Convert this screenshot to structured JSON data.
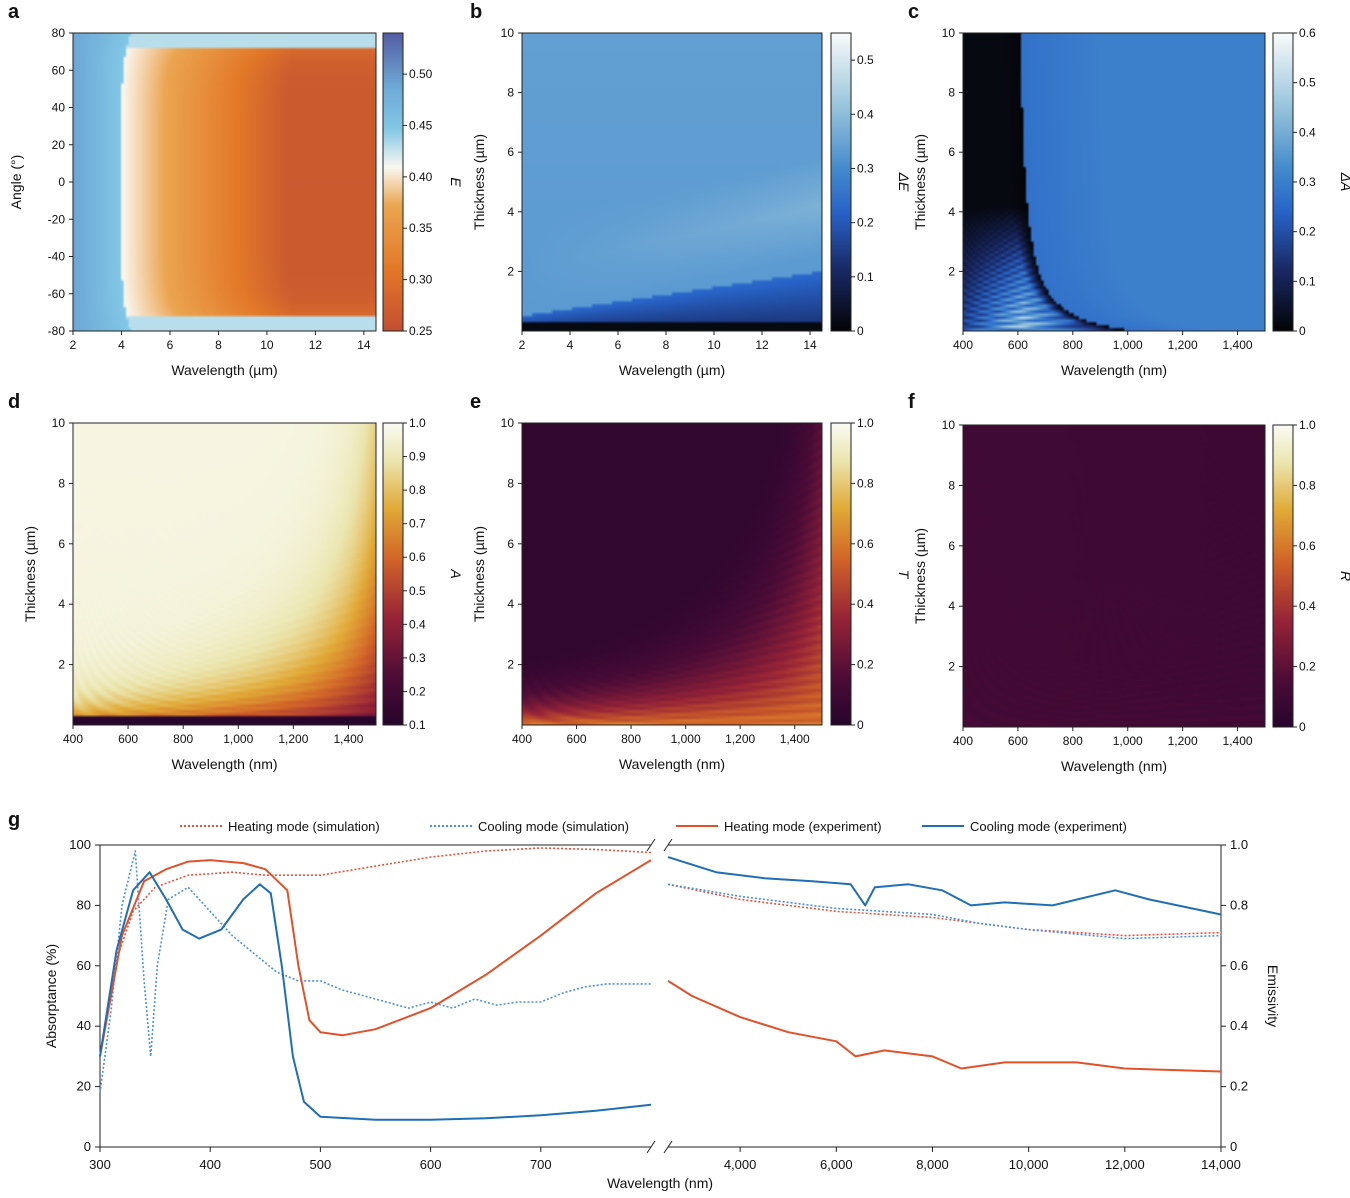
{
  "panel_letters": [
    "a",
    "b",
    "c",
    "d",
    "e",
    "f",
    "g"
  ],
  "chart_data": [
    {
      "id": "a",
      "type": "heatmap",
      "xlabel": "Wavelength (µm)",
      "ylabel": "Angle (°)",
      "xlim": [
        2,
        14.5
      ],
      "ylim": [
        -80,
        80
      ],
      "xticks": [
        "2",
        "4",
        "6",
        "8",
        "10",
        "12",
        "14"
      ],
      "yticks": [
        "80",
        "60",
        "40",
        "20",
        "0",
        "-20",
        "-40",
        "-60",
        "-80"
      ],
      "colorbar": {
        "label": "E",
        "range": [
          0.25,
          0.54
        ],
        "ticks": [
          "0.50",
          "0.45",
          "0.40",
          "0.35",
          "0.30",
          "0.25"
        ]
      },
      "colormap": "rdylbu",
      "field": "emissivity difference vs wavelength and angle; low (~0.25) at long wavelength, high (~0.45) near 2–3 µm"
    },
    {
      "id": "b",
      "type": "heatmap",
      "xlabel": "Wavelength (µm)",
      "ylabel": "Thickness (µm)",
      "xlim": [
        2,
        14.5
      ],
      "ylim": [
        0,
        10
      ],
      "xticks": [
        "2",
        "4",
        "6",
        "8",
        "10",
        "12",
        "14"
      ],
      "yticks": [
        "10",
        "8",
        "6",
        "4",
        "2"
      ],
      "colorbar": {
        "label": "ΔE",
        "range": [
          0,
          0.55
        ],
        "ticks": [
          "0.5",
          "0.4",
          "0.3",
          "0.2",
          "0.1",
          "0"
        ]
      },
      "colormap": "blues"
    },
    {
      "id": "c",
      "type": "heatmap",
      "xlabel": "Wavelength (nm)",
      "ylabel": "Thickness (µm)",
      "xlim": [
        400,
        1500
      ],
      "ylim": [
        0,
        10
      ],
      "xticks": [
        "400",
        "600",
        "800",
        "1,000",
        "1,200",
        "1,400"
      ],
      "yticks": [
        "10",
        "8",
        "6",
        "4",
        "2"
      ],
      "colorbar": {
        "label": "ΔA",
        "range": [
          0,
          0.6
        ],
        "ticks": [
          "0.6",
          "0.5",
          "0.4",
          "0.3",
          "0.2",
          "0.1",
          "0"
        ]
      },
      "colormap": "blues"
    },
    {
      "id": "d",
      "type": "heatmap",
      "xlabel": "Wavelength (nm)",
      "ylabel": "Thickness (µm)",
      "xlim": [
        400,
        1500
      ],
      "ylim": [
        0,
        10
      ],
      "xticks": [
        "400",
        "600",
        "800",
        "1,000",
        "1,200",
        "1,400"
      ],
      "yticks": [
        "10",
        "8",
        "6",
        "4",
        "2"
      ],
      "colorbar": {
        "label": "A",
        "range": [
          0.1,
          1.0
        ],
        "ticks": [
          "1.0",
          "0.9",
          "0.8",
          "0.7",
          "0.6",
          "0.5",
          "0.4",
          "0.3",
          "0.2",
          "0.1"
        ]
      },
      "colormap": "inferno-light"
    },
    {
      "id": "e",
      "type": "heatmap",
      "xlabel": "Wavelength (nm)",
      "ylabel": "Thickness (µm)",
      "xlim": [
        400,
        1500
      ],
      "ylim": [
        0,
        10
      ],
      "xticks": [
        "400",
        "600",
        "800",
        "1,000",
        "1,200",
        "1,400"
      ],
      "yticks": [
        "10",
        "8",
        "6",
        "4",
        "2"
      ],
      "colorbar": {
        "label": "T",
        "range": [
          0,
          1.0
        ],
        "ticks": [
          "1.0",
          "0.8",
          "0.6",
          "0.4",
          "0.2",
          "0"
        ]
      },
      "colormap": "inferno-light"
    },
    {
      "id": "f",
      "type": "heatmap",
      "xlabel": "Wavelength (nm)",
      "ylabel": "Thickness (µm)",
      "xlim": [
        400,
        1500
      ],
      "ylim": [
        0,
        10
      ],
      "xticks": [
        "400",
        "600",
        "800",
        "1,000",
        "1,200",
        "1,400"
      ],
      "yticks": [
        "10",
        "8",
        "6",
        "4",
        "2"
      ],
      "colorbar": {
        "label": "R",
        "range": [
          0,
          1.0
        ],
        "ticks": [
          "1.0",
          "0.8",
          "0.6",
          "0.4",
          "0.2",
          "0"
        ]
      },
      "colormap": "inferno-light"
    },
    {
      "id": "g",
      "type": "line",
      "xlabel": "Wavelength (nm)",
      "ylabel_left": "Absorptance (%)",
      "ylabel_right": "Emissivity",
      "ylim_left": [
        0,
        100
      ],
      "ylim_right": [
        0,
        1.0
      ],
      "x_break": {
        "left_range": [
          300,
          800
        ],
        "right_range": [
          2500,
          14000
        ]
      },
      "xticks_left": [
        {
          "v": 300,
          "t": "300"
        },
        {
          "v": 400,
          "t": "400"
        },
        {
          "v": 500,
          "t": "500"
        },
        {
          "v": 600,
          "t": "600"
        },
        {
          "v": 700,
          "t": "700"
        }
      ],
      "xticks_right": [
        {
          "v": 4000,
          "t": "4,000"
        },
        {
          "v": 6000,
          "t": "6,000"
        },
        {
          "v": 8000,
          "t": "8,000"
        },
        {
          "v": 10000,
          "t": "10,000"
        },
        {
          "v": 12000,
          "t": "12,000"
        },
        {
          "v": 14000,
          "t": "14,000"
        }
      ],
      "yticks_left": [
        "0",
        "20",
        "40",
        "60",
        "80",
        "100"
      ],
      "yticks_right": [
        "0",
        "0.2",
        "0.4",
        "0.6",
        "0.8",
        "1.0"
      ],
      "legend": [
        {
          "label": "Heating mode (simulation)",
          "color": "#e8523a",
          "style": "dotted"
        },
        {
          "label": "Cooling mode (simulation)",
          "color": "#4a90e2",
          "style": "dotted"
        },
        {
          "label": "Heating mode (experiment)",
          "color": "#e0522a",
          "style": "solid"
        },
        {
          "label": "Cooling mode (experiment)",
          "color": "#1f6fb2",
          "style": "solid"
        }
      ],
      "series": [
        {
          "name": "Heating mode (simulation)",
          "color": "#e8523a",
          "style": "dotted",
          "left": [
            [
              300,
              30
            ],
            [
              315,
              62
            ],
            [
              330,
              78
            ],
            [
              350,
              86
            ],
            [
              380,
              90
            ],
            [
              420,
              91
            ],
            [
              450,
              90
            ],
            [
              500,
              90
            ],
            [
              550,
              93
            ],
            [
              600,
              96
            ],
            [
              650,
              98
            ],
            [
              700,
              99
            ],
            [
              750,
              98.5
            ],
            [
              800,
              97.5
            ]
          ],
          "right": [
            [
              2500,
              0.87
            ],
            [
              4000,
              0.82
            ],
            [
              6000,
              0.78
            ],
            [
              8000,
              0.76
            ],
            [
              10000,
              0.72
            ],
            [
              12000,
              0.7
            ],
            [
              14000,
              0.71
            ]
          ]
        },
        {
          "name": "Cooling mode (simulation)",
          "color": "#4a90e2",
          "style": "dotted",
          "left": [
            [
              300,
              18
            ],
            [
              310,
              45
            ],
            [
              320,
              80
            ],
            [
              332,
              98
            ],
            [
              340,
              55
            ],
            [
              346,
              30
            ],
            [
              352,
              60
            ],
            [
              362,
              82
            ],
            [
              380,
              86
            ],
            [
              400,
              78
            ],
            [
              420,
              70
            ],
            [
              440,
              64
            ],
            [
              460,
              58
            ],
            [
              480,
              55
            ],
            [
              500,
              55
            ],
            [
              520,
              52
            ],
            [
              540,
              50
            ],
            [
              560,
              48
            ],
            [
              580,
              46
            ],
            [
              600,
              48
            ],
            [
              620,
              46
            ],
            [
              640,
              49
            ],
            [
              660,
              47
            ],
            [
              680,
              48
            ],
            [
              700,
              48
            ],
            [
              720,
              51
            ],
            [
              740,
              53
            ],
            [
              760,
              54
            ],
            [
              780,
              54
            ],
            [
              800,
              54
            ]
          ],
          "right": [
            [
              2500,
              0.87
            ],
            [
              4000,
              0.83
            ],
            [
              6000,
              0.79
            ],
            [
              8000,
              0.77
            ],
            [
              9000,
              0.74
            ],
            [
              10000,
              0.72
            ],
            [
              12000,
              0.69
            ],
            [
              14000,
              0.7
            ]
          ]
        },
        {
          "name": "Heating mode (experiment)",
          "color": "#e0522a",
          "style": "solid",
          "left": [
            [
              300,
              30
            ],
            [
              320,
              70
            ],
            [
              340,
              88
            ],
            [
              360,
              92
            ],
            [
              380,
              94.5
            ],
            [
              400,
              95
            ],
            [
              430,
              94
            ],
            [
              450,
              92
            ],
            [
              470,
              85
            ],
            [
              480,
              60
            ],
            [
              490,
              42
            ],
            [
              500,
              38
            ],
            [
              520,
              37
            ],
            [
              550,
              39
            ],
            [
              600,
              46
            ],
            [
              650,
              57
            ],
            [
              700,
              70
            ],
            [
              750,
              84
            ],
            [
              800,
              95
            ]
          ],
          "right": [
            [
              2500,
              0.55
            ],
            [
              3000,
              0.5
            ],
            [
              4000,
              0.43
            ],
            [
              5000,
              0.38
            ],
            [
              6000,
              0.35
            ],
            [
              6400,
              0.3
            ],
            [
              7000,
              0.32
            ],
            [
              8000,
              0.3
            ],
            [
              8600,
              0.26
            ],
            [
              9500,
              0.28
            ],
            [
              11000,
              0.28
            ],
            [
              12000,
              0.26
            ],
            [
              14000,
              0.25
            ]
          ]
        },
        {
          "name": "Cooling mode (experiment)",
          "color": "#1f6fb2",
          "style": "solid",
          "left": [
            [
              300,
              30
            ],
            [
              315,
              65
            ],
            [
              330,
              85
            ],
            [
              345,
              91
            ],
            [
              360,
              82
            ],
            [
              375,
              72
            ],
            [
              390,
              69
            ],
            [
              410,
              72
            ],
            [
              430,
              82
            ],
            [
              445,
              87
            ],
            [
              455,
              84
            ],
            [
              465,
              60
            ],
            [
              475,
              30
            ],
            [
              485,
              15
            ],
            [
              500,
              10
            ],
            [
              550,
              9
            ],
            [
              600,
              9
            ],
            [
              650,
              9.5
            ],
            [
              700,
              10.5
            ],
            [
              750,
              12
            ],
            [
              800,
              14
            ]
          ],
          "right": [
            [
              2500,
              0.96
            ],
            [
              3500,
              0.91
            ],
            [
              4500,
              0.89
            ],
            [
              5500,
              0.88
            ],
            [
              6300,
              0.87
            ],
            [
              6600,
              0.8
            ],
            [
              6800,
              0.86
            ],
            [
              7500,
              0.87
            ],
            [
              8200,
              0.85
            ],
            [
              8800,
              0.8
            ],
            [
              9500,
              0.81
            ],
            [
              10500,
              0.8
            ],
            [
              11800,
              0.85
            ],
            [
              12500,
              0.82
            ],
            [
              14000,
              0.77
            ]
          ]
        }
      ]
    }
  ]
}
